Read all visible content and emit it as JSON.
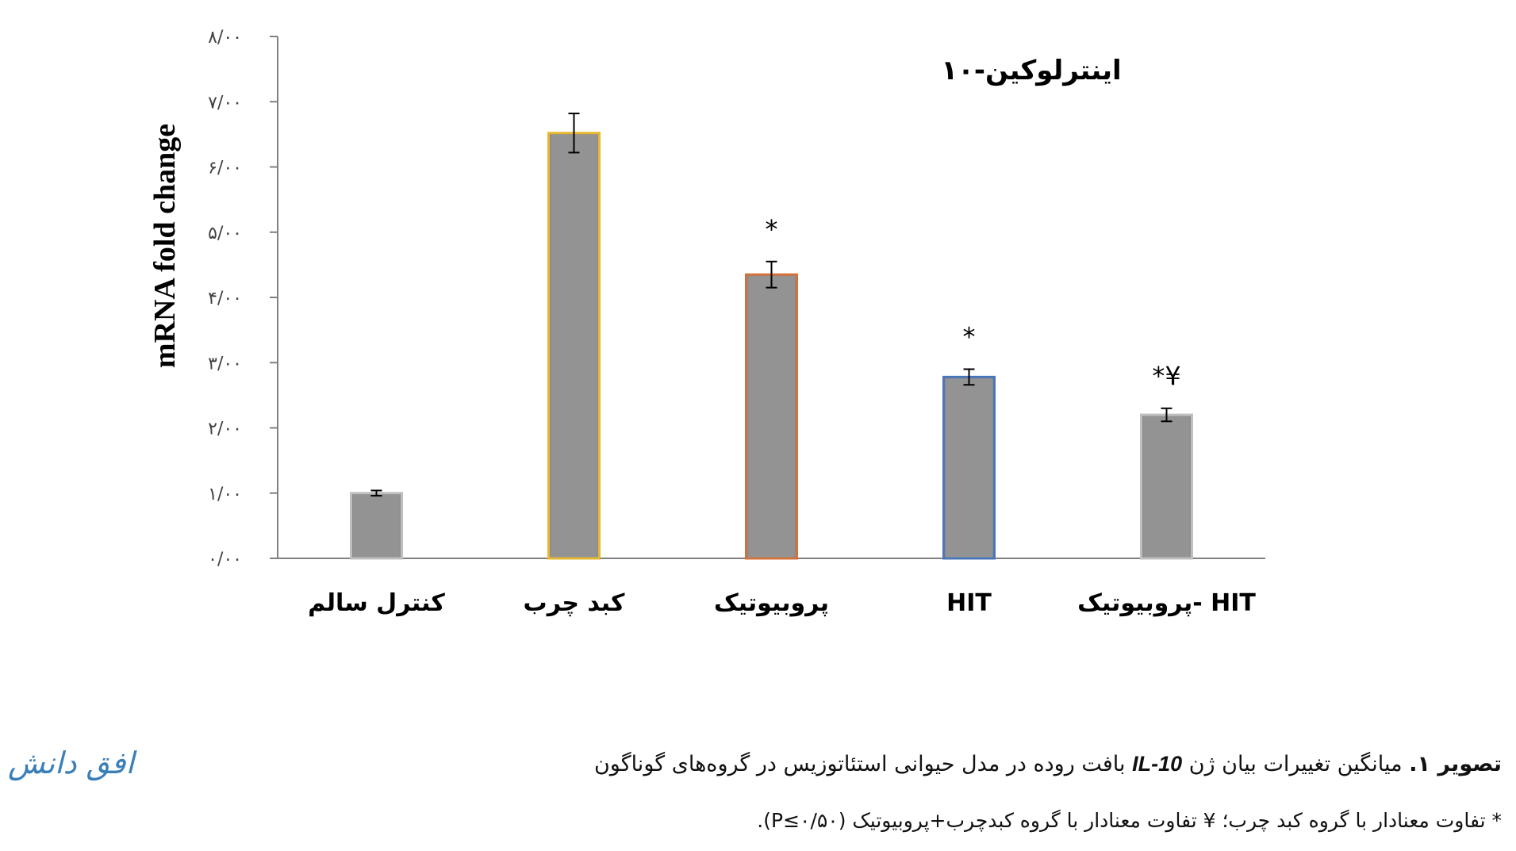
{
  "chart_data": {
    "type": "bar",
    "title": "اینترلوکین-۱۰",
    "ylabel": "mRNA fold change",
    "xlabel": "",
    "ylim": [
      0,
      8
    ],
    "yticks": [
      "۰/۰۰",
      "۱/۰۰",
      "۲/۰۰",
      "۳/۰۰",
      "۴/۰۰",
      "۵/۰۰",
      "۶/۰۰",
      "۷/۰۰",
      "۸/۰۰"
    ],
    "categories": [
      "کنترل سالم",
      "کبد چرب",
      "پروبیوتیک",
      "HIT",
      "پروبیوتیک- HIT"
    ],
    "values": [
      1.0,
      6.52,
      4.35,
      2.78,
      2.2
    ],
    "errors": [
      0.04,
      0.3,
      0.2,
      0.12,
      0.1
    ],
    "annotations": [
      "",
      "",
      "*",
      "*",
      "*¥"
    ],
    "border_colors": [
      "#bfbfbf",
      "#e6b830",
      "#d4703a",
      "#4a76b8",
      "#bfbfbf"
    ],
    "bar_color": "#8c8c8c",
    "grid": false
  },
  "caption": {
    "label": "تصویر ۱.",
    "text_before": " میانگین تغییرات بیان ژن ",
    "gene": "IL-10",
    "text_after": " بافت روده در مدل حیوانی استئاتوزیس در گروه‌های گوناگون",
    "note": "* تفاوت معنادار با گروه کبد چرب؛ ¥ تفاوت معنادار با گروه کبدچرب+پروبیوتیک (P≤۰/۵۰)."
  },
  "logo": {
    "text": "افق دانش"
  }
}
